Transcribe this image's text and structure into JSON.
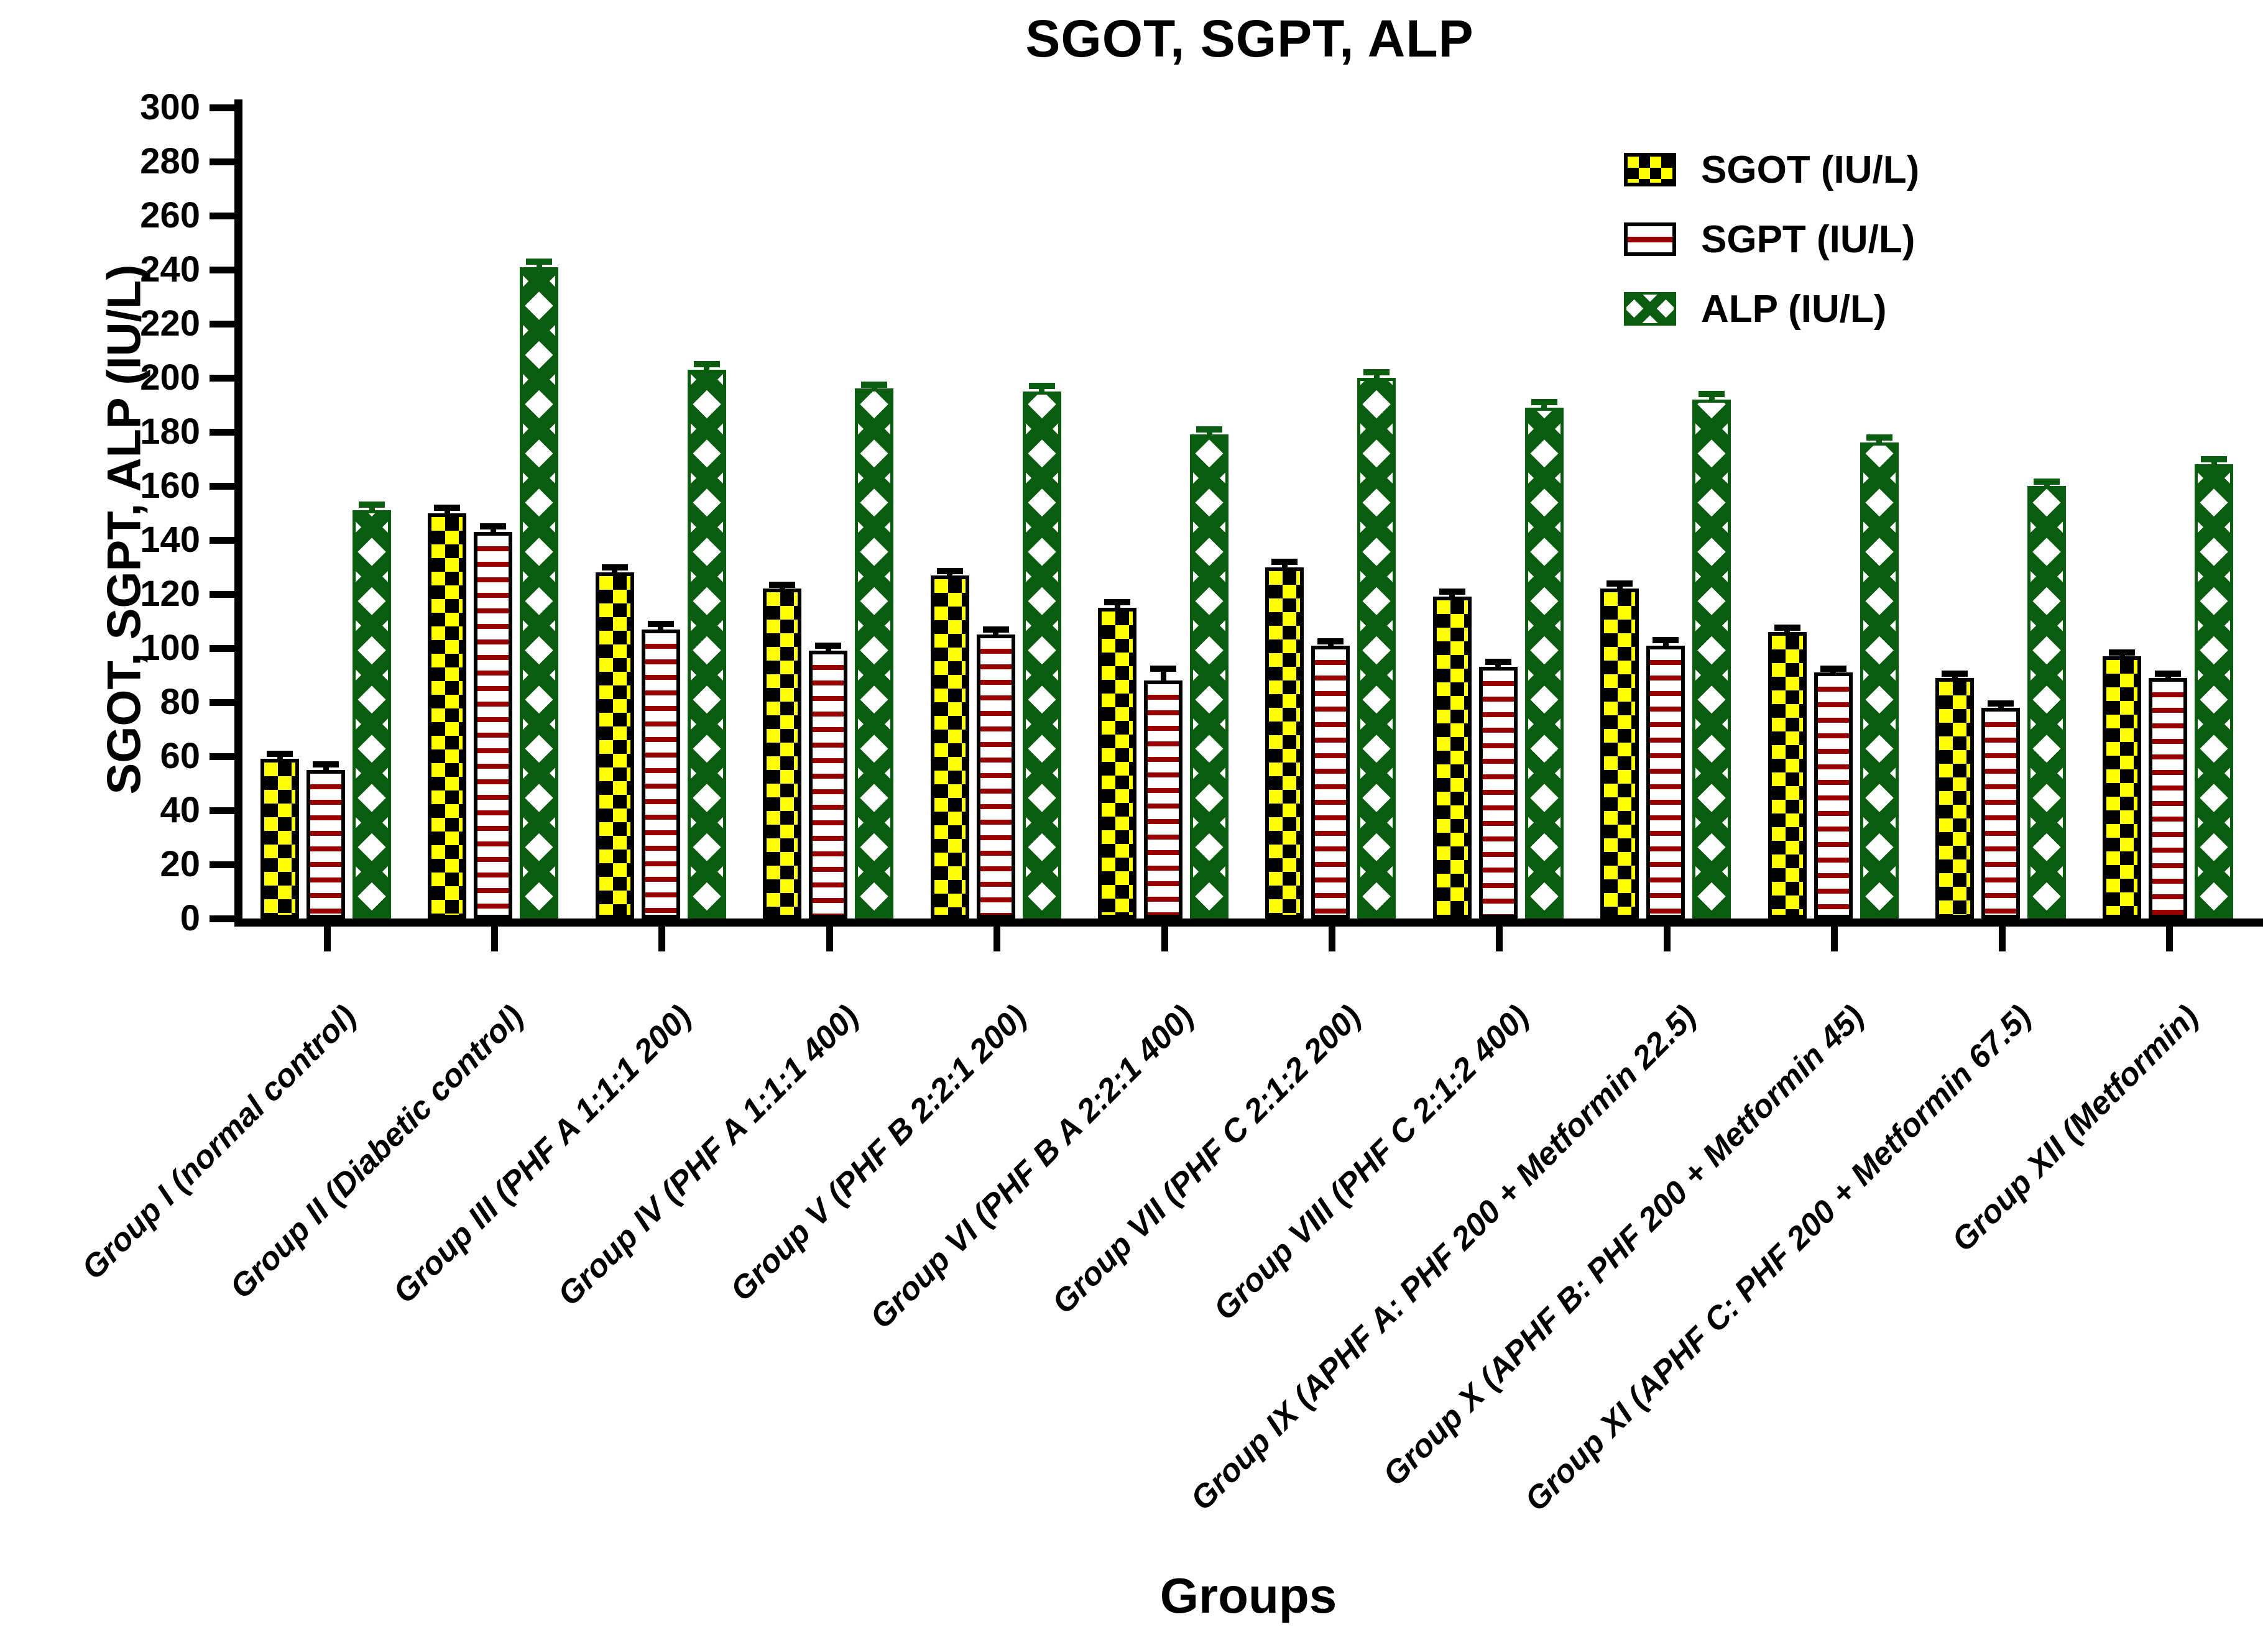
{
  "title": "SGOT, SGPT, ALP",
  "y_axis": {
    "label": "SGOT, SGPT, ALP (IU/L)",
    "tick_labels": [
      "0",
      "20",
      "40",
      "60",
      "80",
      "100",
      "120",
      "140",
      "160",
      "180",
      "200",
      "220",
      "240",
      "260",
      "280",
      "300"
    ]
  },
  "x_axis": {
    "label": "Groups"
  },
  "legend": [
    {
      "label": "SGOT (IU/L)",
      "pattern": "black-yellow-checkerboard"
    },
    {
      "label": "SGPT (IU/L)",
      "pattern": "white-with-dark-red-horizontal-lines"
    },
    {
      "label": "ALP (IU/L)",
      "pattern": "green-with-white-diamond-lattice"
    }
  ],
  "colors": {
    "sgot_yellow": "#ffff00",
    "sgot_black": "#000000",
    "sgpt_line_red": "#990000",
    "alp_green": "#0a5c0e",
    "axis_black": "#000000",
    "background": "#ffffff"
  },
  "chart_data": {
    "type": "bar",
    "title": "SGOT, SGPT, ALP",
    "xlabel": "Groups",
    "ylabel": "SGOT, SGPT, ALP (IU/L)",
    "ylim": [
      0,
      300
    ],
    "ytick_step": 20,
    "grid": false,
    "legend_position": "top-right",
    "error_bars": true,
    "categories": [
      "Group I (normal control)",
      "Group II (Diabetic control)",
      "Group III (PHF A 1:1:1 200)",
      "Group IV (PHF A 1:1:1 400)",
      "Group V (PHF B 2:2:1 200)",
      "Group VI (PHF B A 2:2:1 400)",
      "Group VII (PHF C 2:1:2 200)",
      "Group VIII (PHF C 2:1:2 400)",
      "Group IX (APHF A: PHF 200 + Metformin 22.5)",
      "Group X (APHF B: PHF 200 + Metformin 45)",
      "Group XI (APHF C: PHF 200 + Metformin 67.5)",
      "Group XII (Metformin)"
    ],
    "series": [
      {
        "name": "SGOT (IU/L)",
        "values": [
          59,
          150,
          128,
          122,
          127,
          115,
          130,
          119,
          122,
          106,
          89,
          97
        ],
        "errors": [
          2,
          2,
          2,
          1.5,
          1.5,
          2,
          2,
          2,
          2,
          1.5,
          1.5,
          1.5
        ]
      },
      {
        "name": "SGPT (IU/L)",
        "values": [
          55,
          143,
          107,
          99,
          105,
          88,
          101,
          93,
          101,
          91,
          78,
          89
        ],
        "errors": [
          2,
          2,
          2,
          2,
          2,
          4.5,
          1.5,
          2,
          2,
          1.5,
          1.5,
          1.5
        ]
      },
      {
        "name": "ALP (IU/L)",
        "values": [
          151,
          241,
          203,
          196,
          195,
          179,
          200,
          189,
          192,
          176,
          160,
          168
        ],
        "errors": [
          2,
          2,
          2,
          1.5,
          2,
          2,
          2,
          2,
          2,
          2,
          1.5,
          2
        ]
      }
    ]
  }
}
